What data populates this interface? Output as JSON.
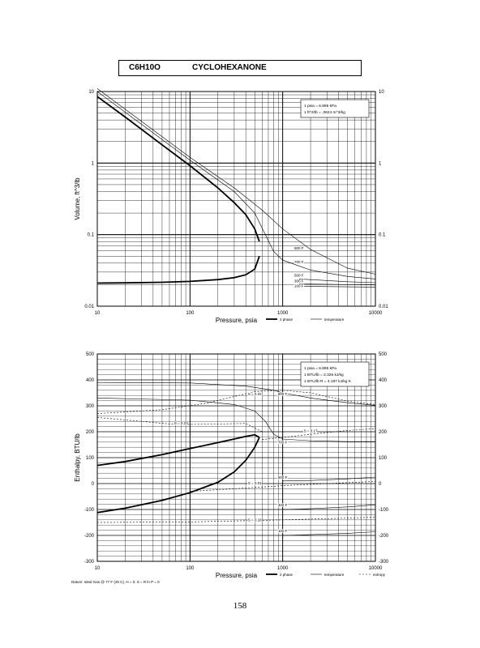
{
  "header": {
    "formula": "C6H10O",
    "name": "CYCLOHEXANONE"
  },
  "page_number": "158",
  "chart_data": [
    {
      "type": "line",
      "xlabel": "Pressure,  psia",
      "ylabel": "Volume, ft^3/lb",
      "xscale": "log",
      "yscale": "log",
      "xlim": [
        10,
        10000
      ],
      "ylim": [
        0.01,
        10
      ],
      "x_ticks": [
        "10",
        "100",
        "1000",
        "10000"
      ],
      "y_ticks": [
        "0.01",
        "0.1",
        "1",
        "10"
      ],
      "grid": true,
      "conversion_note": [
        "1 psia = 6.895 kPa",
        "1 ft^3/lb = .0624 m^3/kg"
      ],
      "legend": [
        "2 phase",
        "temperature"
      ],
      "legend_position": "below-right",
      "series": [
        {
          "role": "saturated-vapor",
          "x": [
            10,
            20,
            50,
            100,
            200,
            300,
            400,
            500,
            560
          ],
          "y": [
            8.5,
            4.4,
            1.8,
            0.92,
            0.45,
            0.28,
            0.19,
            0.12,
            0.08
          ]
        },
        {
          "role": "saturated-liquid",
          "x": [
            10,
            20,
            50,
            100,
            200,
            300,
            400,
            500,
            560
          ],
          "y": [
            0.021,
            0.0212,
            0.0216,
            0.0222,
            0.0235,
            0.025,
            0.0275,
            0.033,
            0.05
          ]
        },
        {
          "name": "800 F",
          "x": [
            10,
            100,
            300,
            600,
            1000,
            2000,
            5000,
            10000
          ],
          "y": [
            11,
            1.2,
            0.45,
            0.22,
            0.12,
            0.062,
            0.034,
            0.028
          ]
        },
        {
          "name": "700 F",
          "x": [
            10,
            100,
            300,
            500,
            650,
            800,
            1000,
            2000,
            5000,
            10000
          ],
          "y": [
            10,
            1.1,
            0.4,
            0.2,
            0.1,
            0.058,
            0.044,
            0.032,
            0.026,
            0.024
          ]
        },
        {
          "name": "500 F",
          "x": [
            1500,
            2000,
            5000,
            10000
          ],
          "y": [
            0.024,
            0.0235,
            0.022,
            0.0213
          ]
        },
        {
          "name": "300 F",
          "x": [
            1500,
            10000
          ],
          "y": [
            0.0205,
            0.0198
          ]
        },
        {
          "name": "100 F",
          "x": [
            1500,
            10000
          ],
          "y": [
            0.019,
            0.0185
          ]
        }
      ]
    },
    {
      "type": "line",
      "xlabel": "Pressure,  psia",
      "ylabel": "Enthalpy, BTU/lb",
      "xscale": "log",
      "xlim": [
        10,
        10000
      ],
      "ylim": [
        -300,
        500
      ],
      "x_ticks": [
        "10",
        "100",
        "1000",
        "10000"
      ],
      "y_ticks": [
        "-300",
        "-200",
        "-100",
        "0",
        "100",
        "200",
        "300",
        "400",
        "500"
      ],
      "grid": true,
      "conversion_note": [
        "1 psia = 6.895 kPa",
        "1 BTU/lb = 2.326 kJ/kg",
        "1 BTU/lb R = 4.187 kJ/kg K"
      ],
      "legend": [
        "2 phase",
        "temperature",
        "entropy"
      ],
      "legend_position": "below-right",
      "footnote": "Datum: Ideal Gas @ 77 F (25 C), H = 0, S = R ln P = 0",
      "series": [
        {
          "role": "saturated-vapor",
          "x": [
            10,
            20,
            50,
            100,
            200,
            300,
            400,
            500,
            560
          ],
          "y": [
            70,
            85,
            112,
            135,
            158,
            172,
            182,
            188,
            178
          ]
        },
        {
          "role": "saturated-liquid",
          "x": [
            10,
            20,
            50,
            100,
            200,
            300,
            400,
            500,
            560
          ],
          "y": [
            -112,
            -95,
            -65,
            -35,
            5,
            45,
            90,
            140,
            178
          ]
        },
        {
          "name": "800 F",
          "x": [
            10,
            100,
            400,
            800,
            1000,
            2000,
            5000,
            10000
          ],
          "y": [
            390,
            388,
            376,
            360,
            350,
            330,
            312,
            302
          ]
        },
        {
          "name": "700 F",
          "x": [
            10,
            100,
            300,
            500,
            650,
            800,
            1000,
            2000,
            5000,
            10000
          ],
          "y": [
            330,
            322,
            305,
            280,
            240,
            190,
            172,
            165,
            162,
            162
          ]
        },
        {
          "name": "500 F",
          "x": [
            1000,
            2000,
            5000,
            10000
          ],
          "y": [
            10,
            12,
            18,
            25
          ]
        },
        {
          "name": "300 F",
          "x": [
            1000,
            2000,
            5000,
            10000
          ],
          "y": [
            -100,
            -97,
            -90,
            -82
          ]
        },
        {
          "name": "100 F",
          "x": [
            1000,
            2000,
            5000,
            10000
          ],
          "y": [
            -200,
            -197,
            -192,
            -186
          ]
        },
        {
          "name": "S = 0.31",
          "style": "dashed",
          "x": [
            10,
            50,
            150,
            500,
            1000,
            2000,
            5000,
            10000
          ],
          "y": [
            270,
            285,
            310,
            355,
            360,
            350,
            318,
            305
          ]
        },
        {
          "name": "S = 0.23",
          "style": "dashed",
          "x": [
            10,
            30,
            60,
            100,
            200,
            400,
            600
          ],
          "y": [
            255,
            240,
            230,
            228,
            230,
            232,
            200
          ]
        },
        {
          "name": "S = 0.17",
          "style": "dashed",
          "x": [
            600,
            1000,
            2000,
            5000,
            10000
          ],
          "y": [
            170,
            178,
            190,
            205,
            212
          ]
        },
        {
          "name": "S = 0.01",
          "style": "dashed",
          "x": [
            100,
            300,
            1000,
            3000,
            10000
          ],
          "y": [
            -30,
            -20,
            -8,
            0,
            8
          ]
        },
        {
          "name": "S = 0.18",
          "style": "dashed",
          "x": [
            10,
            100,
            1000,
            10000
          ],
          "y": [
            -150,
            -148,
            -140,
            -130
          ]
        }
      ]
    }
  ]
}
